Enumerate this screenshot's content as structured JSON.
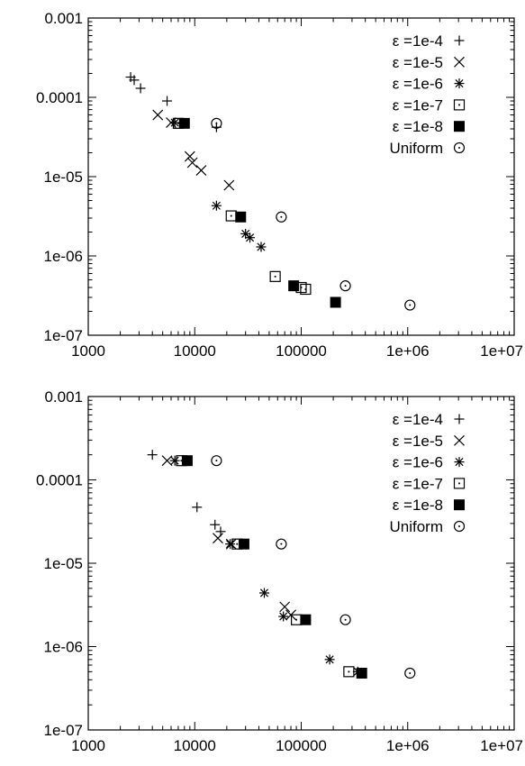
{
  "chart_data": [
    {
      "type": "scatter",
      "xscale": "log",
      "yscale": "log",
      "xlim": [
        1000,
        10000000
      ],
      "ylim": [
        1e-07,
        0.001
      ],
      "xticks": [
        "1000",
        "10000",
        "100000",
        "1e+06",
        "1e+07"
      ],
      "yticks": [
        "0.001",
        "0.0001",
        "1e-05",
        "1e-06",
        "1e-07"
      ],
      "grid": false,
      "legend": "top-right",
      "series": [
        {
          "name": "ε =1e-4",
          "marker": "plus",
          "points": [
            [
              2500,
              0.00018
            ],
            [
              2700,
              0.000165
            ],
            [
              3100,
              0.00013
            ],
            [
              5500,
              9e-05
            ],
            [
              16000,
              4.2e-05
            ]
          ]
        },
        {
          "name": "ε =1e-5",
          "marker": "cross",
          "points": [
            [
              4500,
              6e-05
            ],
            [
              6000,
              4.8e-05
            ],
            [
              9000,
              1.8e-05
            ],
            [
              9500,
              1.5e-05
            ],
            [
              11500,
              1.2e-05
            ],
            [
              21000,
              7.8e-06
            ]
          ]
        },
        {
          "name": "ε =1e-6",
          "marker": "star",
          "points": [
            [
              6500,
              4.8e-05
            ],
            [
              16000,
              4.3e-06
            ],
            [
              30000,
              1.9e-06
            ],
            [
              33000,
              1.7e-06
            ],
            [
              42000,
              1.3e-06
            ]
          ]
        },
        {
          "name": "ε =1e-7",
          "marker": "square",
          "points": [
            [
              7000,
              4.7e-05
            ],
            [
              22000,
              3.2e-06
            ],
            [
              57000,
              5.5e-07
            ],
            [
              100000,
              4e-07
            ],
            [
              110000,
              3.8e-07
            ]
          ]
        },
        {
          "name": "ε =1e-8",
          "marker": "filled-square",
          "points": [
            [
              8000,
              4.7e-05
            ],
            [
              27000,
              3.1e-06
            ],
            [
              85000,
              4.2e-07
            ],
            [
              210000,
              2.6e-07
            ]
          ]
        },
        {
          "name": "Uniform",
          "marker": "circle-dot",
          "points": [
            [
              16000,
              4.7e-05
            ],
            [
              65000,
              3.1e-06
            ],
            [
              260000,
              4.2e-07
            ],
            [
              1050000,
              2.4e-07
            ]
          ]
        }
      ]
    },
    {
      "type": "scatter",
      "xscale": "log",
      "yscale": "log",
      "xlim": [
        1000,
        10000000
      ],
      "ylim": [
        1e-07,
        0.001
      ],
      "xticks": [
        "1000",
        "10000",
        "100000",
        "1e+06",
        "1e+07"
      ],
      "yticks": [
        "0.001",
        "0.0001",
        "1e-05",
        "1e-06",
        "1e-07"
      ],
      "grid": false,
      "legend": "top-right",
      "series": [
        {
          "name": "ε =1e-4",
          "marker": "plus",
          "points": [
            [
              4000,
              0.0002
            ],
            [
              10500,
              4.7e-05
            ],
            [
              15500,
              2.9e-05
            ],
            [
              17500,
              2.4e-05
            ]
          ]
        },
        {
          "name": "ε =1e-5",
          "marker": "cross",
          "points": [
            [
              5500,
              0.00017
            ],
            [
              16500,
              2e-05
            ],
            [
              22000,
              1.7e-05
            ],
            [
              70000,
              3e-06
            ],
            [
              80000,
              2.4e-06
            ]
          ]
        },
        {
          "name": "ε =1e-6",
          "marker": "star",
          "points": [
            [
              6500,
              0.00017
            ],
            [
              21500,
              1.7e-05
            ],
            [
              45000,
              4.4e-06
            ],
            [
              68000,
              2.3e-06
            ],
            [
              185000,
              7e-07
            ],
            [
              340000,
              5e-07
            ]
          ]
        },
        {
          "name": "ε =1e-7",
          "marker": "square",
          "points": [
            [
              7500,
              0.00017
            ],
            [
              25000,
              1.7e-05
            ],
            [
              90000,
              2.1e-06
            ],
            [
              280000,
              5e-07
            ]
          ]
        },
        {
          "name": "ε =1e-8",
          "marker": "filled-square",
          "points": [
            [
              8500,
              0.00017
            ],
            [
              29000,
              1.7e-05
            ],
            [
              110000,
              2.1e-06
            ],
            [
              370000,
              4.8e-07
            ]
          ]
        },
        {
          "name": "Uniform",
          "marker": "circle-dot",
          "points": [
            [
              16000,
              0.00017
            ],
            [
              65000,
              1.7e-05
            ],
            [
              260000,
              2.1e-06
            ],
            [
              1050000,
              4.8e-07
            ]
          ]
        }
      ]
    }
  ]
}
